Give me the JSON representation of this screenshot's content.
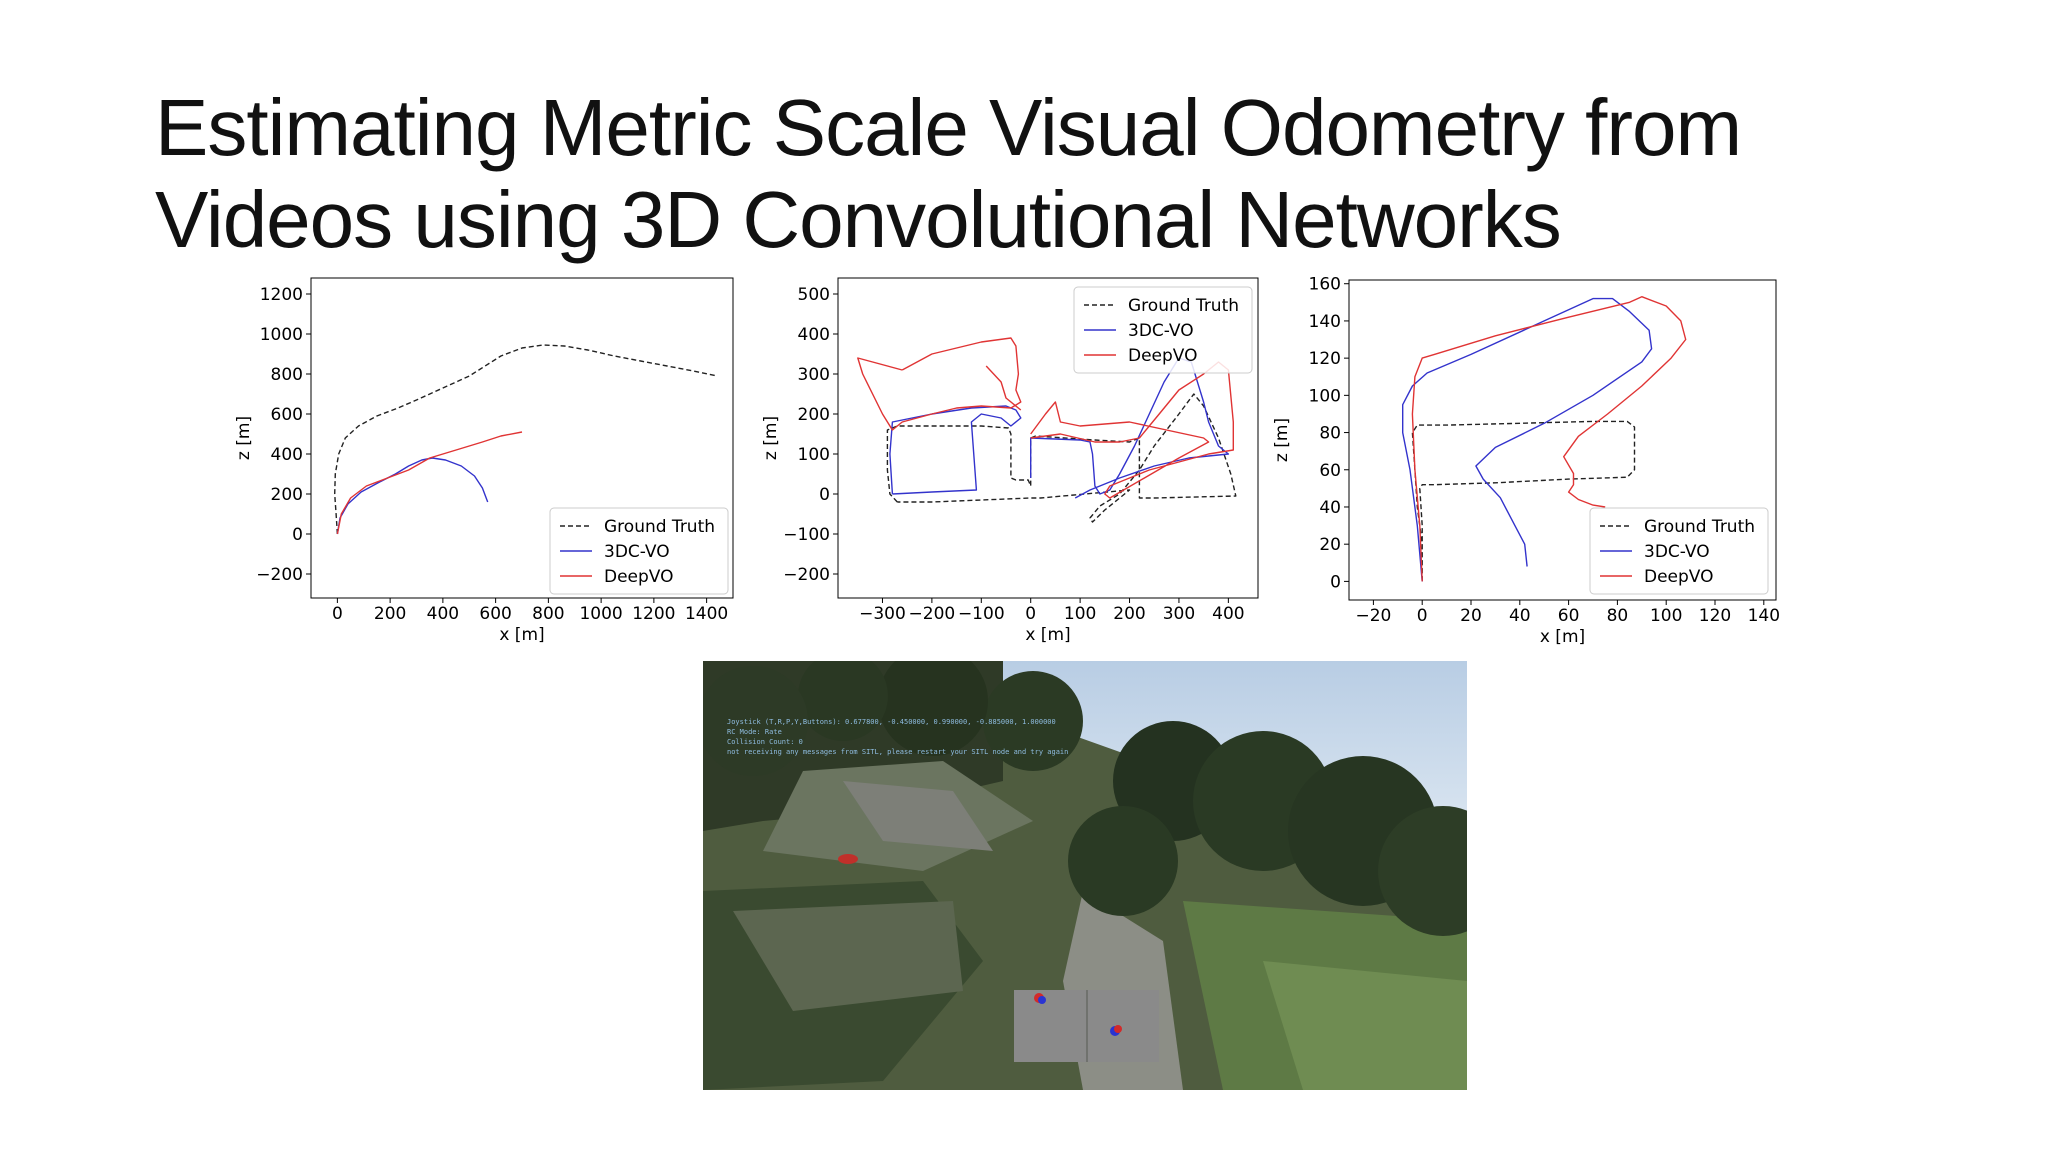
{
  "slide": {
    "title_line1": "Estimating Metric Scale Visual Odometry from",
    "title_line2": "Videos using 3D Convolutional Networks"
  },
  "series_styles": {
    "Ground Truth": {
      "color": "#222222",
      "dash": "5,3"
    },
    "3DC-VO": {
      "color": "#3333cc",
      "dash": ""
    },
    "DeepVO": {
      "color": "#e03434",
      "dash": ""
    }
  },
  "chart_data": [
    {
      "type": "line",
      "xlabel": "x [m]",
      "ylabel": "z [m]",
      "xlim": [
        -100,
        1500
      ],
      "ylim": [
        -320,
        1280
      ],
      "xticks": [
        0,
        200,
        400,
        600,
        800,
        1000,
        1200,
        1400
      ],
      "yticks": [
        -200,
        0,
        200,
        400,
        600,
        800,
        1000,
        1200
      ],
      "legend": "bottom-right",
      "series": [
        {
          "name": "Ground Truth",
          "points": [
            [
              0,
              0
            ],
            [
              -5,
              100
            ],
            [
              -10,
              200
            ],
            [
              -8,
              300
            ],
            [
              5,
              400
            ],
            [
              30,
              480
            ],
            [
              80,
              540
            ],
            [
              150,
              590
            ],
            [
              230,
              630
            ],
            [
              300,
              670
            ],
            [
              400,
              730
            ],
            [
              500,
              790
            ],
            [
              560,
              840
            ],
            [
              620,
              890
            ],
            [
              700,
              930
            ],
            [
              780,
              945
            ],
            [
              860,
              940
            ],
            [
              950,
              920
            ],
            [
              1050,
              890
            ],
            [
              1150,
              865
            ],
            [
              1250,
              840
            ],
            [
              1350,
              815
            ],
            [
              1440,
              790
            ]
          ]
        },
        {
          "name": "3DC-VO",
          "points": [
            [
              0,
              0
            ],
            [
              10,
              80
            ],
            [
              40,
              150
            ],
            [
              90,
              210
            ],
            [
              160,
              260
            ],
            [
              220,
              300
            ],
            [
              270,
              340
            ],
            [
              320,
              370
            ],
            [
              360,
              380
            ],
            [
              410,
              370
            ],
            [
              470,
              340
            ],
            [
              520,
              290
            ],
            [
              550,
              230
            ],
            [
              570,
              160
            ]
          ]
        },
        {
          "name": "DeepVO",
          "points": [
            [
              0,
              0
            ],
            [
              15,
              100
            ],
            [
              50,
              180
            ],
            [
              110,
              240
            ],
            [
              190,
              280
            ],
            [
              270,
              320
            ],
            [
              350,
              380
            ],
            [
              450,
              420
            ],
            [
              550,
              460
            ],
            [
              620,
              490
            ],
            [
              700,
              510
            ]
          ]
        }
      ]
    },
    {
      "type": "line",
      "xlabel": "x [m]",
      "ylabel": "z [m]",
      "xlim": [
        -390,
        460
      ],
      "ylim": [
        -260,
        540
      ],
      "xticks": [
        -300,
        -200,
        -100,
        0,
        100,
        200,
        300,
        400
      ],
      "yticks": [
        -200,
        -100,
        0,
        100,
        200,
        300,
        400,
        500
      ],
      "legend": "top-right",
      "series": [
        {
          "name": "Ground Truth",
          "points": [
            [
              -270,
              -20
            ],
            [
              -285,
              0
            ],
            [
              -290,
              60
            ],
            [
              -290,
              160
            ],
            [
              -270,
              170
            ],
            [
              -100,
              170
            ],
            [
              -45,
              165
            ],
            [
              -40,
              150
            ],
            [
              -40,
              40
            ],
            [
              -30,
              35
            ],
            [
              -5,
              35
            ],
            [
              0,
              20
            ],
            [
              0,
              140
            ],
            [
              10,
              145
            ],
            [
              130,
              135
            ],
            [
              200,
              130
            ],
            [
              220,
              140
            ],
            [
              220,
              -10
            ],
            [
              250,
              -10
            ],
            [
              415,
              -5
            ],
            [
              405,
              50
            ],
            [
              380,
              140
            ],
            [
              350,
              220
            ],
            [
              330,
              250
            ],
            [
              300,
              200
            ],
            [
              250,
              120
            ],
            [
              220,
              60
            ],
            [
              180,
              0
            ],
            [
              140,
              -30
            ],
            [
              120,
              -60
            ],
            [
              125,
              -70
            ],
            [
              150,
              -40
            ],
            [
              190,
              0
            ],
            [
              200,
              10
            ],
            [
              20,
              -10
            ],
            [
              0,
              -10
            ],
            [
              -200,
              -20
            ],
            [
              -270,
              -20
            ]
          ]
        },
        {
          "name": "3DC-VO",
          "points": [
            [
              -280,
              0
            ],
            [
              -285,
              100
            ],
            [
              -280,
              180
            ],
            [
              -200,
              200
            ],
            [
              -120,
              215
            ],
            [
              -50,
              220
            ],
            [
              -30,
              210
            ],
            [
              -20,
              190
            ],
            [
              -40,
              170
            ],
            [
              -60,
              190
            ],
            [
              -100,
              200
            ],
            [
              -120,
              180
            ],
            [
              -110,
              10
            ],
            [
              -200,
              5
            ],
            [
              -280,
              0
            ]
          ]
        },
        {
          "name": "3DC-VO",
          "points": [
            [
              0,
              40
            ],
            [
              0,
              140
            ],
            [
              100,
              135
            ],
            [
              120,
              130
            ],
            [
              125,
              100
            ],
            [
              130,
              20
            ],
            [
              140,
              0
            ],
            [
              160,
              10
            ],
            [
              180,
              50
            ],
            [
              210,
              120
            ],
            [
              240,
              200
            ],
            [
              270,
              280
            ],
            [
              300,
              340
            ],
            [
              325,
              330
            ],
            [
              350,
              230
            ],
            [
              360,
              180
            ],
            [
              380,
              120
            ],
            [
              400,
              100
            ],
            [
              320,
              90
            ],
            [
              250,
              70
            ],
            [
              180,
              40
            ],
            [
              120,
              10
            ],
            [
              90,
              -10
            ]
          ]
        },
        {
          "name": "DeepVO",
          "points": [
            [
              -260,
              310
            ],
            [
              -200,
              350
            ],
            [
              -100,
              380
            ],
            [
              -40,
              390
            ],
            [
              -30,
              370
            ],
            [
              -25,
              300
            ],
            [
              -30,
              260
            ],
            [
              -20,
              230
            ],
            [
              -40,
              215
            ],
            [
              -100,
              220
            ],
            [
              -150,
              215
            ],
            [
              -200,
              200
            ],
            [
              -260,
              180
            ],
            [
              -280,
              160
            ],
            [
              -300,
              200
            ],
            [
              -340,
              300
            ],
            [
              -350,
              340
            ],
            [
              -260,
              310
            ]
          ]
        },
        {
          "name": "DeepVO",
          "points": [
            [
              -90,
              320
            ],
            [
              -60,
              280
            ],
            [
              -50,
              240
            ],
            [
              -20,
              210
            ]
          ]
        },
        {
          "name": "DeepVO",
          "points": [
            [
              0,
              140
            ],
            [
              60,
              150
            ],
            [
              130,
              130
            ],
            [
              180,
              130
            ],
            [
              220,
              140
            ],
            [
              260,
              200
            ],
            [
              300,
              260
            ],
            [
              350,
              300
            ],
            [
              380,
              330
            ],
            [
              400,
              310
            ],
            [
              410,
              180
            ],
            [
              410,
              110
            ],
            [
              360,
              100
            ],
            [
              300,
              80
            ],
            [
              240,
              60
            ],
            [
              200,
              40
            ],
            [
              160,
              20
            ],
            [
              150,
              0
            ],
            [
              160,
              -10
            ],
            [
              230,
              40
            ],
            [
              300,
              90
            ],
            [
              360,
              130
            ],
            [
              350,
              140
            ],
            [
              200,
              180
            ],
            [
              100,
              170
            ],
            [
              60,
              180
            ],
            [
              50,
              230
            ],
            [
              30,
              200
            ],
            [
              0,
              150
            ]
          ]
        }
      ]
    },
    {
      "type": "line",
      "xlabel": "x [m]",
      "ylabel": "z [m]",
      "xlim": [
        -30,
        145
      ],
      "ylim": [
        -10,
        162
      ],
      "xticks": [
        -20,
        0,
        20,
        40,
        60,
        80,
        100,
        120,
        140
      ],
      "yticks": [
        0,
        20,
        40,
        60,
        80,
        100,
        120,
        140,
        160
      ],
      "legend": "bottom-right",
      "series": [
        {
          "name": "Ground Truth",
          "points": [
            [
              0,
              0
            ],
            [
              0,
              20
            ],
            [
              -2,
              40
            ],
            [
              -3,
              60
            ],
            [
              -4,
              80
            ],
            [
              -2,
              84
            ],
            [
              10,
              84
            ],
            [
              40,
              85
            ],
            [
              70,
              86
            ],
            [
              84,
              86
            ],
            [
              87,
              83
            ],
            [
              87,
              70
            ],
            [
              87,
              60
            ],
            [
              84,
              56
            ],
            [
              60,
              55
            ],
            [
              30,
              53
            ],
            [
              5,
              52
            ],
            [
              0,
              52
            ],
            [
              -1,
              50
            ],
            [
              0,
              30
            ],
            [
              0,
              10
            ],
            [
              0,
              0
            ]
          ]
        },
        {
          "name": "3DC-VO",
          "points": [
            [
              0,
              0
            ],
            [
              -2,
              30
            ],
            [
              -5,
              60
            ],
            [
              -8,
              80
            ],
            [
              -8,
              95
            ],
            [
              -4,
              105
            ],
            [
              2,
              112
            ],
            [
              20,
              122
            ],
            [
              50,
              140
            ],
            [
              70,
              152
            ],
            [
              78,
              152
            ],
            [
              85,
              145
            ],
            [
              93,
              135
            ],
            [
              94,
              125
            ],
            [
              90,
              118
            ],
            [
              70,
              100
            ],
            [
              50,
              85
            ],
            [
              30,
              72
            ],
            [
              22,
              62
            ],
            [
              25,
              55
            ],
            [
              32,
              45
            ],
            [
              38,
              30
            ],
            [
              42,
              20
            ],
            [
              43,
              8
            ]
          ]
        },
        {
          "name": "DeepVO",
          "points": [
            [
              0,
              0
            ],
            [
              -1,
              30
            ],
            [
              -3,
              60
            ],
            [
              -4,
              90
            ],
            [
              -3,
              110
            ],
            [
              0,
              120
            ],
            [
              5,
              122
            ],
            [
              30,
              132
            ],
            [
              60,
              142
            ],
            [
              85,
              150
            ],
            [
              90,
              153
            ],
            [
              100,
              148
            ],
            [
              106,
              140
            ],
            [
              108,
              130
            ],
            [
              102,
              120
            ],
            [
              90,
              105
            ],
            [
              76,
              90
            ],
            [
              64,
              78
            ],
            [
              58,
              67
            ],
            [
              62,
              58
            ],
            [
              62,
              52
            ],
            [
              60,
              48
            ],
            [
              64,
              44
            ],
            [
              70,
              41
            ],
            [
              75,
              40
            ]
          ]
        }
      ]
    }
  ],
  "sim": {
    "hud_lines": [
      "Joystick (T,R,P,Y,Buttons): 0.677800, -0.450000, 0.990000, -0.885000, 1.000000",
      "RC Mode: Rate",
      "Collision Count: 0",
      "not receiving any messages from SITL, please restart your SITL node and try again"
    ]
  }
}
